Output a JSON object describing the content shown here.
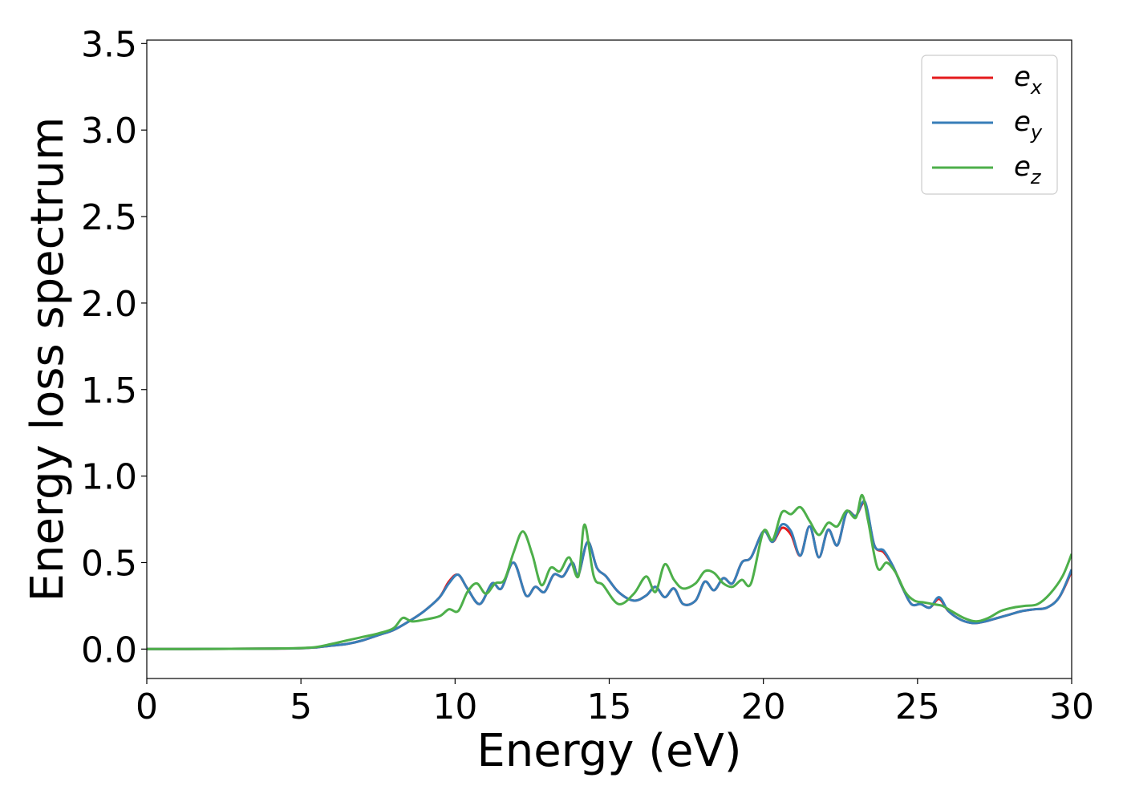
{
  "chart_data": {
    "type": "line",
    "title": "",
    "xlabel": "Energy (eV)",
    "ylabel": "Energy loss spectrum",
    "xlim": [
      0,
      30
    ],
    "ylim": [
      -0.17,
      3.52
    ],
    "xticks": [
      "0",
      "5",
      "10",
      "15",
      "20",
      "25",
      "30"
    ],
    "yticks": [
      "0.0",
      "0.5",
      "1.0",
      "1.5",
      "2.0",
      "2.5",
      "3.0",
      "3.5"
    ],
    "grid": false,
    "legend_position": "top-right",
    "series": [
      {
        "name": "e",
        "subscript": "x",
        "color": "#e41a1c",
        "points": [
          [
            0,
            0
          ],
          [
            2,
            0.001
          ],
          [
            4,
            0.003
          ],
          [
            5,
            0.005
          ],
          [
            5.5,
            0.01
          ],
          [
            6,
            0.02
          ],
          [
            6.5,
            0.03
          ],
          [
            7,
            0.05
          ],
          [
            7.5,
            0.08
          ],
          [
            8,
            0.11
          ],
          [
            8.5,
            0.16
          ],
          [
            9,
            0.22
          ],
          [
            9.5,
            0.3
          ],
          [
            9.8,
            0.39
          ],
          [
            10.1,
            0.43
          ],
          [
            10.4,
            0.35
          ],
          [
            10.8,
            0.26
          ],
          [
            11.2,
            0.38
          ],
          [
            11.5,
            0.35
          ],
          [
            11.9,
            0.5
          ],
          [
            12.3,
            0.31
          ],
          [
            12.6,
            0.36
          ],
          [
            12.9,
            0.33
          ],
          [
            13.2,
            0.43
          ],
          [
            13.5,
            0.42
          ],
          [
            13.8,
            0.5
          ],
          [
            14.0,
            0.43
          ],
          [
            14.3,
            0.62
          ],
          [
            14.6,
            0.47
          ],
          [
            14.9,
            0.42
          ],
          [
            15.3,
            0.33
          ],
          [
            15.8,
            0.28
          ],
          [
            16.2,
            0.31
          ],
          [
            16.5,
            0.36
          ],
          [
            16.8,
            0.3
          ],
          [
            17.1,
            0.35
          ],
          [
            17.4,
            0.26
          ],
          [
            17.8,
            0.28
          ],
          [
            18.1,
            0.39
          ],
          [
            18.4,
            0.34
          ],
          [
            18.7,
            0.41
          ],
          [
            19.0,
            0.38
          ],
          [
            19.3,
            0.5
          ],
          [
            19.6,
            0.53
          ],
          [
            20.0,
            0.68
          ],
          [
            20.3,
            0.62
          ],
          [
            20.6,
            0.7
          ],
          [
            20.9,
            0.66
          ],
          [
            21.2,
            0.54
          ],
          [
            21.5,
            0.71
          ],
          [
            21.8,
            0.53
          ],
          [
            22.1,
            0.69
          ],
          [
            22.4,
            0.6
          ],
          [
            22.7,
            0.79
          ],
          [
            23.0,
            0.77
          ],
          [
            23.3,
            0.84
          ],
          [
            23.6,
            0.6
          ],
          [
            23.9,
            0.56
          ],
          [
            24.2,
            0.48
          ],
          [
            24.5,
            0.36
          ],
          [
            24.8,
            0.26
          ],
          [
            25.1,
            0.26
          ],
          [
            25.4,
            0.24
          ],
          [
            25.7,
            0.29
          ],
          [
            26.0,
            0.22
          ],
          [
            26.4,
            0.17
          ],
          [
            26.8,
            0.15
          ],
          [
            27.2,
            0.16
          ],
          [
            27.6,
            0.18
          ],
          [
            28.0,
            0.2
          ],
          [
            28.4,
            0.22
          ],
          [
            28.8,
            0.23
          ],
          [
            29.2,
            0.24
          ],
          [
            29.6,
            0.3
          ],
          [
            30,
            0.45
          ]
        ]
      },
      {
        "name": "e",
        "subscript": "y",
        "color": "#377eb8",
        "points": [
          [
            0,
            0
          ],
          [
            2,
            0.001
          ],
          [
            4,
            0.003
          ],
          [
            5,
            0.005
          ],
          [
            5.5,
            0.01
          ],
          [
            6,
            0.02
          ],
          [
            6.5,
            0.03
          ],
          [
            7,
            0.05
          ],
          [
            7.5,
            0.08
          ],
          [
            8,
            0.11
          ],
          [
            8.5,
            0.16
          ],
          [
            9,
            0.22
          ],
          [
            9.5,
            0.3
          ],
          [
            9.8,
            0.38
          ],
          [
            10.1,
            0.43
          ],
          [
            10.4,
            0.35
          ],
          [
            10.8,
            0.26
          ],
          [
            11.2,
            0.38
          ],
          [
            11.5,
            0.35
          ],
          [
            11.9,
            0.5
          ],
          [
            12.3,
            0.31
          ],
          [
            12.6,
            0.36
          ],
          [
            12.9,
            0.33
          ],
          [
            13.2,
            0.43
          ],
          [
            13.5,
            0.42
          ],
          [
            13.8,
            0.5
          ],
          [
            14.0,
            0.43
          ],
          [
            14.3,
            0.62
          ],
          [
            14.6,
            0.47
          ],
          [
            14.9,
            0.42
          ],
          [
            15.3,
            0.33
          ],
          [
            15.8,
            0.28
          ],
          [
            16.2,
            0.31
          ],
          [
            16.5,
            0.36
          ],
          [
            16.8,
            0.3
          ],
          [
            17.1,
            0.35
          ],
          [
            17.4,
            0.26
          ],
          [
            17.8,
            0.28
          ],
          [
            18.1,
            0.39
          ],
          [
            18.4,
            0.34
          ],
          [
            18.7,
            0.41
          ],
          [
            19.0,
            0.38
          ],
          [
            19.3,
            0.5
          ],
          [
            19.6,
            0.53
          ],
          [
            20.0,
            0.68
          ],
          [
            20.3,
            0.62
          ],
          [
            20.6,
            0.72
          ],
          [
            20.9,
            0.68
          ],
          [
            21.2,
            0.54
          ],
          [
            21.5,
            0.71
          ],
          [
            21.8,
            0.53
          ],
          [
            22.1,
            0.69
          ],
          [
            22.4,
            0.6
          ],
          [
            22.7,
            0.79
          ],
          [
            23.0,
            0.77
          ],
          [
            23.3,
            0.85
          ],
          [
            23.6,
            0.6
          ],
          [
            23.9,
            0.57
          ],
          [
            24.2,
            0.48
          ],
          [
            24.5,
            0.36
          ],
          [
            24.8,
            0.26
          ],
          [
            25.1,
            0.26
          ],
          [
            25.4,
            0.24
          ],
          [
            25.7,
            0.3
          ],
          [
            26.0,
            0.22
          ],
          [
            26.4,
            0.17
          ],
          [
            26.8,
            0.15
          ],
          [
            27.2,
            0.16
          ],
          [
            27.6,
            0.18
          ],
          [
            28.0,
            0.2
          ],
          [
            28.4,
            0.22
          ],
          [
            28.8,
            0.23
          ],
          [
            29.2,
            0.24
          ],
          [
            29.6,
            0.3
          ],
          [
            30,
            0.46
          ]
        ]
      },
      {
        "name": "e",
        "subscript": "z",
        "color": "#4daf4a",
        "points": [
          [
            0,
            0
          ],
          [
            2,
            0.001
          ],
          [
            4,
            0.003
          ],
          [
            5,
            0.006
          ],
          [
            5.5,
            0.012
          ],
          [
            6,
            0.03
          ],
          [
            6.5,
            0.05
          ],
          [
            7,
            0.07
          ],
          [
            7.5,
            0.09
          ],
          [
            8,
            0.12
          ],
          [
            8.3,
            0.18
          ],
          [
            8.6,
            0.16
          ],
          [
            9,
            0.17
          ],
          [
            9.5,
            0.19
          ],
          [
            9.8,
            0.23
          ],
          [
            10.1,
            0.22
          ],
          [
            10.4,
            0.33
          ],
          [
            10.7,
            0.38
          ],
          [
            11.0,
            0.32
          ],
          [
            11.3,
            0.38
          ],
          [
            11.6,
            0.4
          ],
          [
            11.9,
            0.56
          ],
          [
            12.2,
            0.68
          ],
          [
            12.5,
            0.55
          ],
          [
            12.8,
            0.37
          ],
          [
            13.1,
            0.47
          ],
          [
            13.4,
            0.45
          ],
          [
            13.7,
            0.53
          ],
          [
            14.0,
            0.42
          ],
          [
            14.2,
            0.72
          ],
          [
            14.5,
            0.42
          ],
          [
            14.8,
            0.37
          ],
          [
            15.3,
            0.26
          ],
          [
            15.8,
            0.32
          ],
          [
            16.2,
            0.42
          ],
          [
            16.5,
            0.33
          ],
          [
            16.8,
            0.49
          ],
          [
            17.1,
            0.4
          ],
          [
            17.4,
            0.35
          ],
          [
            17.8,
            0.38
          ],
          [
            18.1,
            0.45
          ],
          [
            18.4,
            0.44
          ],
          [
            18.7,
            0.38
          ],
          [
            19.0,
            0.36
          ],
          [
            19.3,
            0.4
          ],
          [
            19.6,
            0.38
          ],
          [
            20.0,
            0.68
          ],
          [
            20.3,
            0.63
          ],
          [
            20.6,
            0.79
          ],
          [
            20.9,
            0.78
          ],
          [
            21.2,
            0.82
          ],
          [
            21.5,
            0.74
          ],
          [
            21.8,
            0.66
          ],
          [
            22.1,
            0.73
          ],
          [
            22.4,
            0.71
          ],
          [
            22.7,
            0.8
          ],
          [
            23.0,
            0.76
          ],
          [
            23.2,
            0.89
          ],
          [
            23.4,
            0.74
          ],
          [
            23.7,
            0.47
          ],
          [
            24.0,
            0.5
          ],
          [
            24.3,
            0.44
          ],
          [
            24.6,
            0.33
          ],
          [
            24.9,
            0.28
          ],
          [
            25.2,
            0.27
          ],
          [
            25.5,
            0.26
          ],
          [
            25.8,
            0.25
          ],
          [
            26.1,
            0.22
          ],
          [
            26.5,
            0.18
          ],
          [
            26.9,
            0.16
          ],
          [
            27.3,
            0.18
          ],
          [
            27.7,
            0.22
          ],
          [
            28.1,
            0.24
          ],
          [
            28.5,
            0.25
          ],
          [
            28.9,
            0.26
          ],
          [
            29.3,
            0.32
          ],
          [
            29.7,
            0.42
          ],
          [
            30,
            0.55
          ]
        ]
      }
    ]
  }
}
